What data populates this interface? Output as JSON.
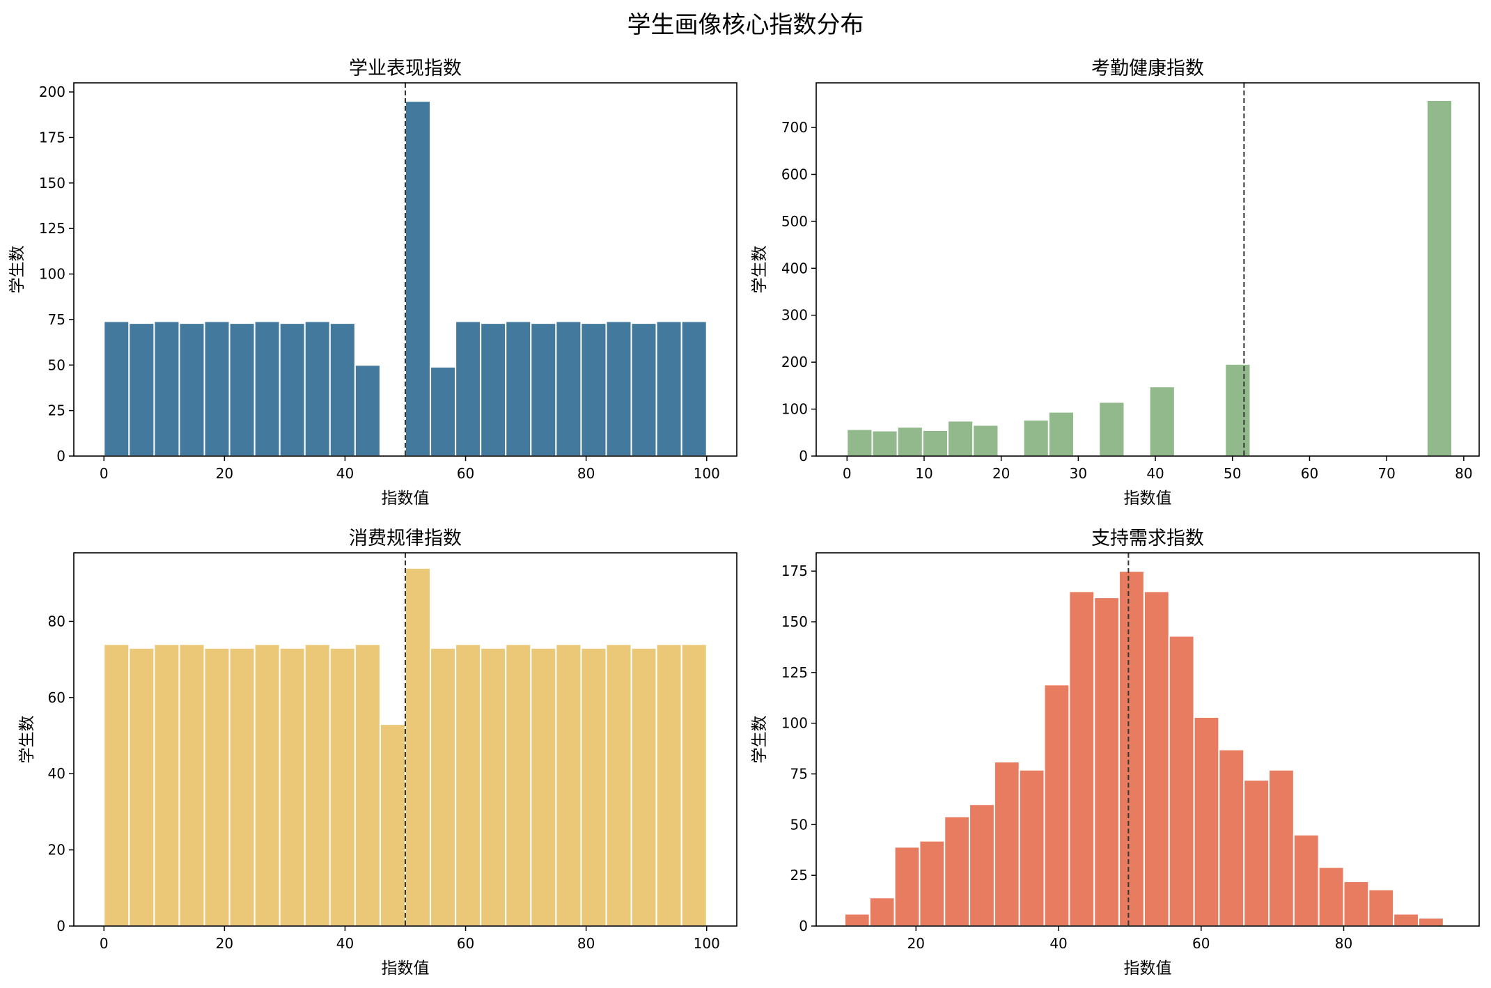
{
  "suptitle": "学生画像核心指数分布",
  "chart_data": [
    {
      "type": "bar",
      "title": "学业表现指数",
      "xlabel": "指数值",
      "ylabel": "学生数",
      "color": "#44799e",
      "xlim": [
        -5,
        105
      ],
      "ylim": [
        0,
        205
      ],
      "xticks": [
        0,
        20,
        40,
        60,
        80,
        100
      ],
      "yticks": [
        0,
        25,
        50,
        75,
        100,
        125,
        150,
        175,
        200
      ],
      "mean_line": 50,
      "bin_start": 0,
      "bin_width": 4.1667,
      "values": [
        74,
        73,
        74,
        73,
        74,
        73,
        74,
        73,
        74,
        73,
        50,
        0,
        195,
        49,
        74,
        73,
        74,
        73,
        74,
        73,
        74,
        73,
        74,
        74
      ]
    },
    {
      "type": "bar",
      "title": "考勤健康指数",
      "xlabel": "指数值",
      "ylabel": "学生数",
      "color": "#92b98b",
      "xlim": [
        -4,
        82
      ],
      "ylim": [
        0,
        795
      ],
      "xticks": [
        0,
        10,
        20,
        30,
        40,
        50,
        60,
        70,
        80
      ],
      "yticks": [
        0,
        100,
        200,
        300,
        400,
        500,
        600,
        700
      ],
      "mean_line": 51.5,
      "bin_start": 0,
      "bin_width": 3.27,
      "values": [
        57,
        54,
        62,
        55,
        75,
        66,
        0,
        77,
        94,
        0,
        115,
        0,
        148,
        0,
        0,
        196,
        0,
        0,
        0,
        0,
        0,
        0,
        0,
        758
      ]
    },
    {
      "type": "bar",
      "title": "消费规律指数",
      "xlabel": "指数值",
      "ylabel": "学生数",
      "color": "#eac878",
      "xlim": [
        -5,
        105
      ],
      "ylim": [
        0,
        98
      ],
      "xticks": [
        0,
        20,
        40,
        60,
        80,
        100
      ],
      "yticks": [
        0,
        20,
        40,
        60,
        80
      ],
      "mean_line": 50,
      "bin_start": 0,
      "bin_width": 4.1667,
      "values": [
        74,
        73,
        74,
        74,
        73,
        73,
        74,
        73,
        74,
        73,
        74,
        53,
        94,
        73,
        74,
        73,
        74,
        73,
        74,
        73,
        74,
        73,
        74,
        74
      ]
    },
    {
      "type": "bar",
      "title": "支持需求指数",
      "xlabel": "指数值",
      "ylabel": "学生数",
      "color": "#e77c60",
      "xlim": [
        6,
        99
      ],
      "ylim": [
        0,
        184
      ],
      "xticks": [
        20,
        40,
        60,
        80
      ],
      "yticks": [
        0,
        25,
        50,
        75,
        100,
        125,
        150,
        175
      ],
      "mean_line": 49.8,
      "bin_start": 10,
      "bin_width": 3.5,
      "values": [
        6,
        14,
        39,
        42,
        54,
        60,
        81,
        77,
        119,
        165,
        162,
        175,
        165,
        143,
        103,
        87,
        72,
        77,
        45,
        29,
        22,
        18,
        6,
        4
      ]
    }
  ]
}
